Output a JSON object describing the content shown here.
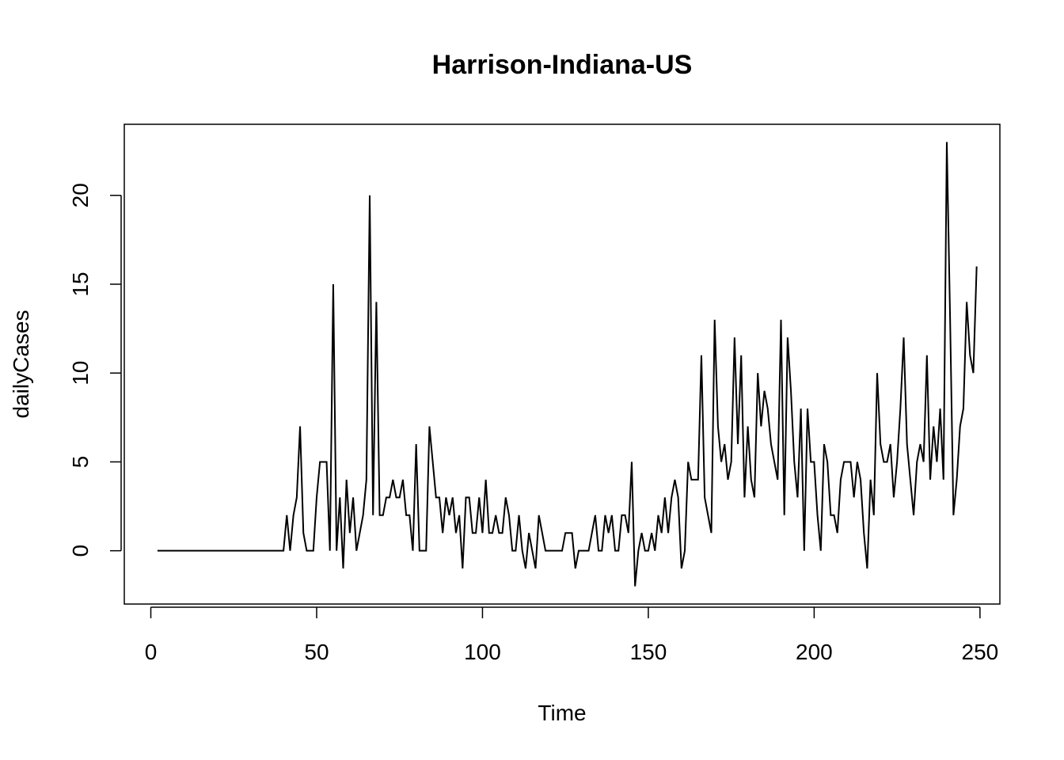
{
  "chart_data": {
    "type": "line",
    "title": "Harrison-Indiana-US",
    "xlabel": "Time",
    "ylabel": "dailyCases",
    "xlim": [
      -8,
      256
    ],
    "ylim": [
      -3,
      24
    ],
    "x_ticks": [
      0,
      50,
      100,
      150,
      200,
      250
    ],
    "y_ticks": [
      0,
      5,
      10,
      15,
      20
    ],
    "grid": false,
    "line_color": "#000000",
    "x_start": 2,
    "values": [
      0,
      0,
      0,
      0,
      0,
      0,
      0,
      0,
      0,
      0,
      0,
      0,
      0,
      0,
      0,
      0,
      0,
      0,
      0,
      0,
      0,
      0,
      0,
      0,
      0,
      0,
      0,
      0,
      0,
      0,
      0,
      0,
      0,
      0,
      0,
      0,
      0,
      0,
      0,
      2,
      0,
      2,
      3,
      7,
      1,
      0,
      0,
      0,
      3,
      5,
      5,
      5,
      0,
      15,
      0,
      3,
      -1,
      4,
      1,
      3,
      0,
      1,
      2,
      4,
      20,
      2,
      14,
      2,
      2,
      3,
      3,
      4,
      3,
      3,
      4,
      2,
      2,
      0,
      6,
      0,
      0,
      0,
      7,
      5,
      3,
      3,
      1,
      3,
      2,
      3,
      1,
      2,
      -1,
      3,
      3,
      1,
      1,
      3,
      1,
      4,
      1,
      1,
      2,
      1,
      1,
      3,
      2,
      0,
      0,
      2,
      0,
      -1,
      1,
      0,
      -1,
      2,
      1,
      0,
      0,
      0,
      0,
      0,
      0,
      1,
      1,
      1,
      -1,
      0,
      0,
      0,
      0,
      1,
      2,
      0,
      0,
      2,
      1,
      2,
      0,
      0,
      2,
      2,
      1,
      5,
      -2,
      0,
      1,
      0,
      0,
      1,
      0,
      2,
      1,
      3,
      1,
      3,
      4,
      3,
      -1,
      0,
      5,
      4,
      4,
      4,
      11,
      3,
      2,
      1,
      13,
      7,
      5,
      6,
      4,
      5,
      12,
      6,
      11,
      3,
      7,
      4,
      3,
      10,
      7,
      9,
      8,
      6,
      5,
      4,
      13,
      2,
      12,
      9,
      5,
      3,
      8,
      0,
      8,
      5,
      5,
      2,
      0,
      6,
      5,
      2,
      2,
      1,
      4,
      5,
      5,
      5,
      3,
      5,
      4,
      1,
      -1,
      4,
      2,
      10,
      6,
      5,
      5,
      6,
      3,
      5,
      8,
      12,
      6,
      4,
      2,
      5,
      6,
      5,
      11,
      4,
      7,
      5,
      8,
      4,
      23,
      13,
      2,
      4,
      7,
      8,
      14,
      11,
      10,
      16
    ]
  }
}
